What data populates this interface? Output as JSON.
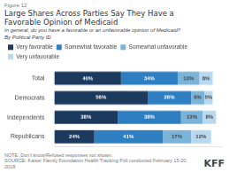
{
  "chart_data": {
    "type": "bar",
    "orientation": "horizontal",
    "stacked": true,
    "title": [
      "Large Shares Across Parties Say They Have a",
      "Favorable Opinion of Medicaid"
    ],
    "subtitle": "In general, do you have a favorable or an unfavorable opinion of Medicaid?",
    "annotations": [
      "Figure 12",
      "By Political Party ID",
      "NOTE: Don't know/Refused responses not shown.",
      "SOURCE: Kaiser Family Foundation Health Tracking Poll conducted February 15-20, 2018.",
      "KFF"
    ],
    "categories": [
      "Total",
      "Democrats",
      "Independents",
      "Republicans"
    ],
    "series": [
      {
        "name": "Very favorable",
        "color": "#1c3a5e",
        "values": [
          40,
          56,
          38,
          24
        ],
        "value_labels": [
          "40%",
          "56%",
          "38%",
          "24%"
        ]
      },
      {
        "name": "Somewhat favorable",
        "color": "#2e7fc1",
        "values": [
          34,
          26,
          38,
          41
        ],
        "value_labels": [
          "34%",
          "26%",
          "38%",
          "41%"
        ]
      },
      {
        "name": "Somewhat unfavorable",
        "color": "#7ab4d8",
        "values": [
          13,
          8,
          13,
          17
        ],
        "value_labels": [
          "13%",
          "8%",
          "13%",
          "17%"
        ]
      },
      {
        "name": "Very unfavorable",
        "color": "#b8d9ef",
        "values": [
          8,
          5,
          8,
          12
        ],
        "value_labels": [
          "8%",
          "5%",
          "8%",
          "12%"
        ]
      }
    ],
    "xlim": [
      0,
      100
    ],
    "grid": false,
    "legend": "top",
    "data_labels": true,
    "tick_labels": "y"
  }
}
